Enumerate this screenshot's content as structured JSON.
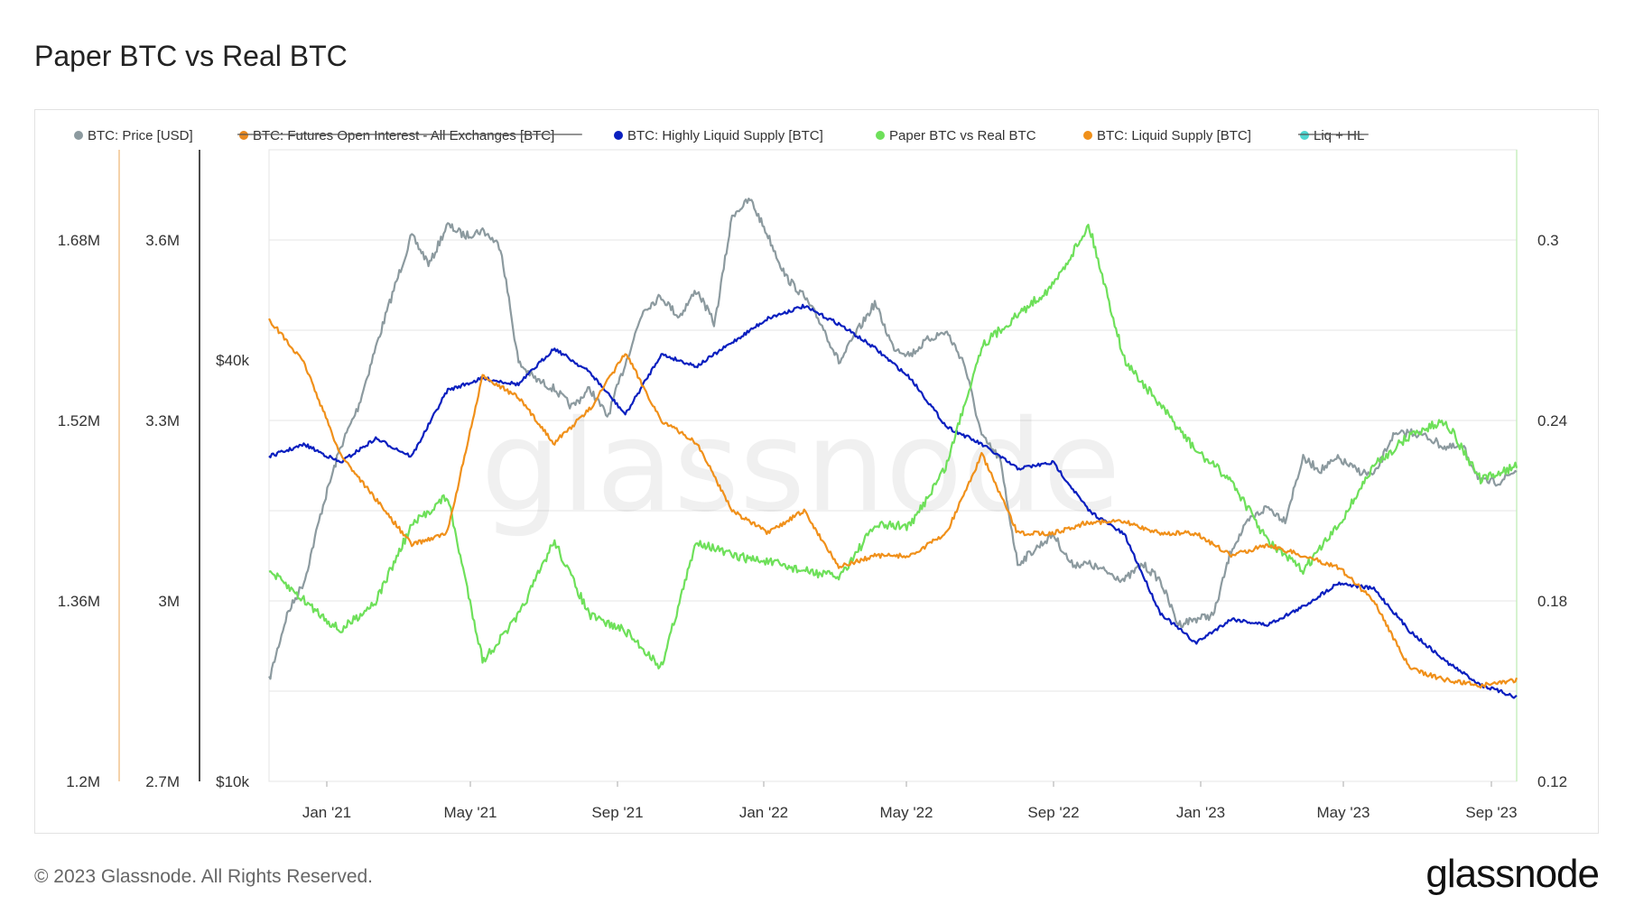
{
  "page": {
    "title": "Paper BTC vs Real BTC",
    "footer": "© 2023 Glassnode. All Rights Reserved.",
    "logo": "glassnode",
    "watermark": "glassnode"
  },
  "colors": {
    "price": "#8c9a9f",
    "futures_oi": "#e8891f",
    "highly_liquid": "#0a1fbf",
    "paper_vs_real": "#6ee05a",
    "liquid_supply": "#f0901a",
    "liq_hl": "#4fd6d0"
  },
  "chart_data": {
    "type": "line",
    "title": "Paper BTC vs Real BTC",
    "legend": [
      {
        "name": "BTC: Price [USD]",
        "color_key": "price",
        "disabled": false
      },
      {
        "name": "BTC: Futures Open Interest - All Exchanges [BTC]",
        "color_key": "futures_oi",
        "disabled": true
      },
      {
        "name": "BTC: Highly Liquid Supply [BTC]",
        "color_key": "highly_liquid",
        "disabled": false
      },
      {
        "name": "Paper BTC vs Real BTC",
        "color_key": "paper_vs_real",
        "disabled": false
      },
      {
        "name": "BTC: Liquid Supply [BTC]",
        "color_key": "liquid_supply",
        "disabled": false
      },
      {
        "name": "Liq + HL",
        "color_key": "liq_hl",
        "disabled": true
      }
    ],
    "legend_position": "top-left",
    "x_labels": [
      "Jan '21",
      "May '21",
      "Sep '21",
      "Jan '22",
      "May '22",
      "Sep '22",
      "Jan '23",
      "May '23",
      "Sep '23"
    ],
    "x_range": [
      "2020-11-01",
      "2023-09-30"
    ],
    "axes": {
      "liquid_supply": {
        "ticks": [
          "1.68M",
          "1.52M",
          "1.36M",
          "1.2M"
        ],
        "range": [
          1200000,
          1760000
        ]
      },
      "highly_liquid": {
        "ticks": [
          "3.6M",
          "3.3M",
          "3M",
          "2.7M"
        ],
        "range": [
          2700000,
          3750000
        ]
      },
      "price": {
        "ticks": [
          "$40k",
          "$10k"
        ],
        "scale": "log",
        "range": [
          10000,
          75000
        ]
      },
      "ratio": {
        "ticks": [
          "0.3",
          "0.24",
          "0.18",
          "0.12"
        ],
        "range": [
          0.12,
          0.33
        ]
      }
    },
    "grid": true,
    "series": [
      {
        "name": "BTC: Price [USD]",
        "axis": "price",
        "x": [
          0,
          0.5,
          1,
          1.5,
          2,
          2.5,
          3,
          3.5,
          4,
          4.5,
          5,
          5.5,
          6,
          6.5,
          7,
          7.5,
          8,
          8.5,
          9,
          9.5,
          10,
          10.5,
          11,
          11.5,
          12,
          12.5,
          13,
          13.5,
          14,
          14.5,
          15,
          15.5,
          16,
          16.5,
          17,
          17.5,
          18,
          18.5,
          19,
          19.5,
          20,
          20.5,
          21,
          21.5,
          22,
          22.5,
          23,
          23.5,
          24,
          24.5,
          25,
          25.5,
          26,
          26.5,
          27,
          27.5,
          28,
          28.5,
          29,
          29.5,
          30,
          30.5,
          31,
          31.5,
          32,
          32.5,
          33,
          33.5,
          34,
          34.5,
          35
        ],
        "values": [
          13800,
          17000,
          19000,
          24000,
          29000,
          33000,
          40000,
          48000,
          57000,
          52000,
          59000,
          57000,
          58000,
          55000,
          38000,
          36000,
          35000,
          33000,
          35000,
          32000,
          38000,
          45000,
          47000,
          44000,
          48000,
          43000,
          61000,
          64000,
          57000,
          50000,
          47000,
          43000,
          38000,
          42000,
          46000,
          40000,
          39000,
          41000,
          42000,
          38000,
          30000,
          28000,
          20000,
          21000,
          22000,
          20000,
          20000,
          19500,
          19000,
          20000,
          19000,
          16500,
          16800,
          17000,
          21000,
          23000,
          24000,
          23000,
          28000,
          27000,
          28000,
          27000,
          26500,
          30000,
          30500,
          30000,
          29000,
          29000,
          26000,
          26000,
          27000
        ]
      },
      {
        "name": "BTC: Highly Liquid Supply [BTC]",
        "axis": "highly_liquid",
        "x": [
          0,
          1,
          2,
          3,
          4,
          5,
          6,
          7,
          8,
          9,
          10,
          11,
          12,
          13,
          14,
          15,
          16,
          17,
          18,
          19,
          20,
          21,
          22,
          23,
          24,
          25,
          26,
          27,
          28,
          29,
          30,
          31,
          32,
          33,
          34,
          35
        ],
        "values": [
          3240000,
          3260000,
          3230000,
          3270000,
          3240000,
          3350000,
          3370000,
          3360000,
          3420000,
          3380000,
          3310000,
          3410000,
          3390000,
          3430000,
          3470000,
          3490000,
          3460000,
          3420000,
          3370000,
          3290000,
          3260000,
          3220000,
          3230000,
          3150000,
          3110000,
          2980000,
          2930000,
          2970000,
          2960000,
          2990000,
          3030000,
          3020000,
          2950000,
          2900000,
          2860000,
          2840000
        ]
      },
      {
        "name": "Paper BTC vs Real BTC",
        "axis": "ratio",
        "x": [
          0,
          1,
          2,
          3,
          4,
          5,
          6,
          7,
          8,
          9,
          10,
          11,
          12,
          13,
          14,
          15,
          16,
          17,
          18,
          19,
          20,
          21,
          22,
          23,
          24,
          25,
          26,
          27,
          28,
          29,
          30,
          31,
          32,
          33,
          34,
          35
        ],
        "values": [
          0.19,
          0.18,
          0.17,
          0.18,
          0.205,
          0.215,
          0.16,
          0.175,
          0.2,
          0.175,
          0.17,
          0.158,
          0.2,
          0.195,
          0.193,
          0.19,
          0.188,
          0.205,
          0.205,
          0.225,
          0.265,
          0.275,
          0.285,
          0.305,
          0.26,
          0.245,
          0.23,
          0.22,
          0.2,
          0.19,
          0.205,
          0.225,
          0.235,
          0.24,
          0.22,
          0.225
        ]
      },
      {
        "name": "BTC: Liquid Supply [BTC]",
        "axis": "liquid_supply",
        "x": [
          0,
          1,
          2,
          3,
          4,
          5,
          6,
          7,
          8,
          9,
          10,
          11,
          12,
          13,
          14,
          15,
          16,
          17,
          18,
          19,
          20,
          21,
          22,
          23,
          24,
          25,
          26,
          27,
          28,
          29,
          30,
          31,
          32,
          33,
          34,
          35
        ],
        "values": [
          1610000,
          1570000,
          1490000,
          1450000,
          1410000,
          1420000,
          1560000,
          1540000,
          1500000,
          1530000,
          1580000,
          1520000,
          1500000,
          1440000,
          1420000,
          1440000,
          1390000,
          1400000,
          1400000,
          1420000,
          1490000,
          1420000,
          1420000,
          1430000,
          1430000,
          1420000,
          1420000,
          1400000,
          1410000,
          1400000,
          1390000,
          1360000,
          1300000,
          1290000,
          1285000,
          1290000
        ]
      }
    ]
  }
}
